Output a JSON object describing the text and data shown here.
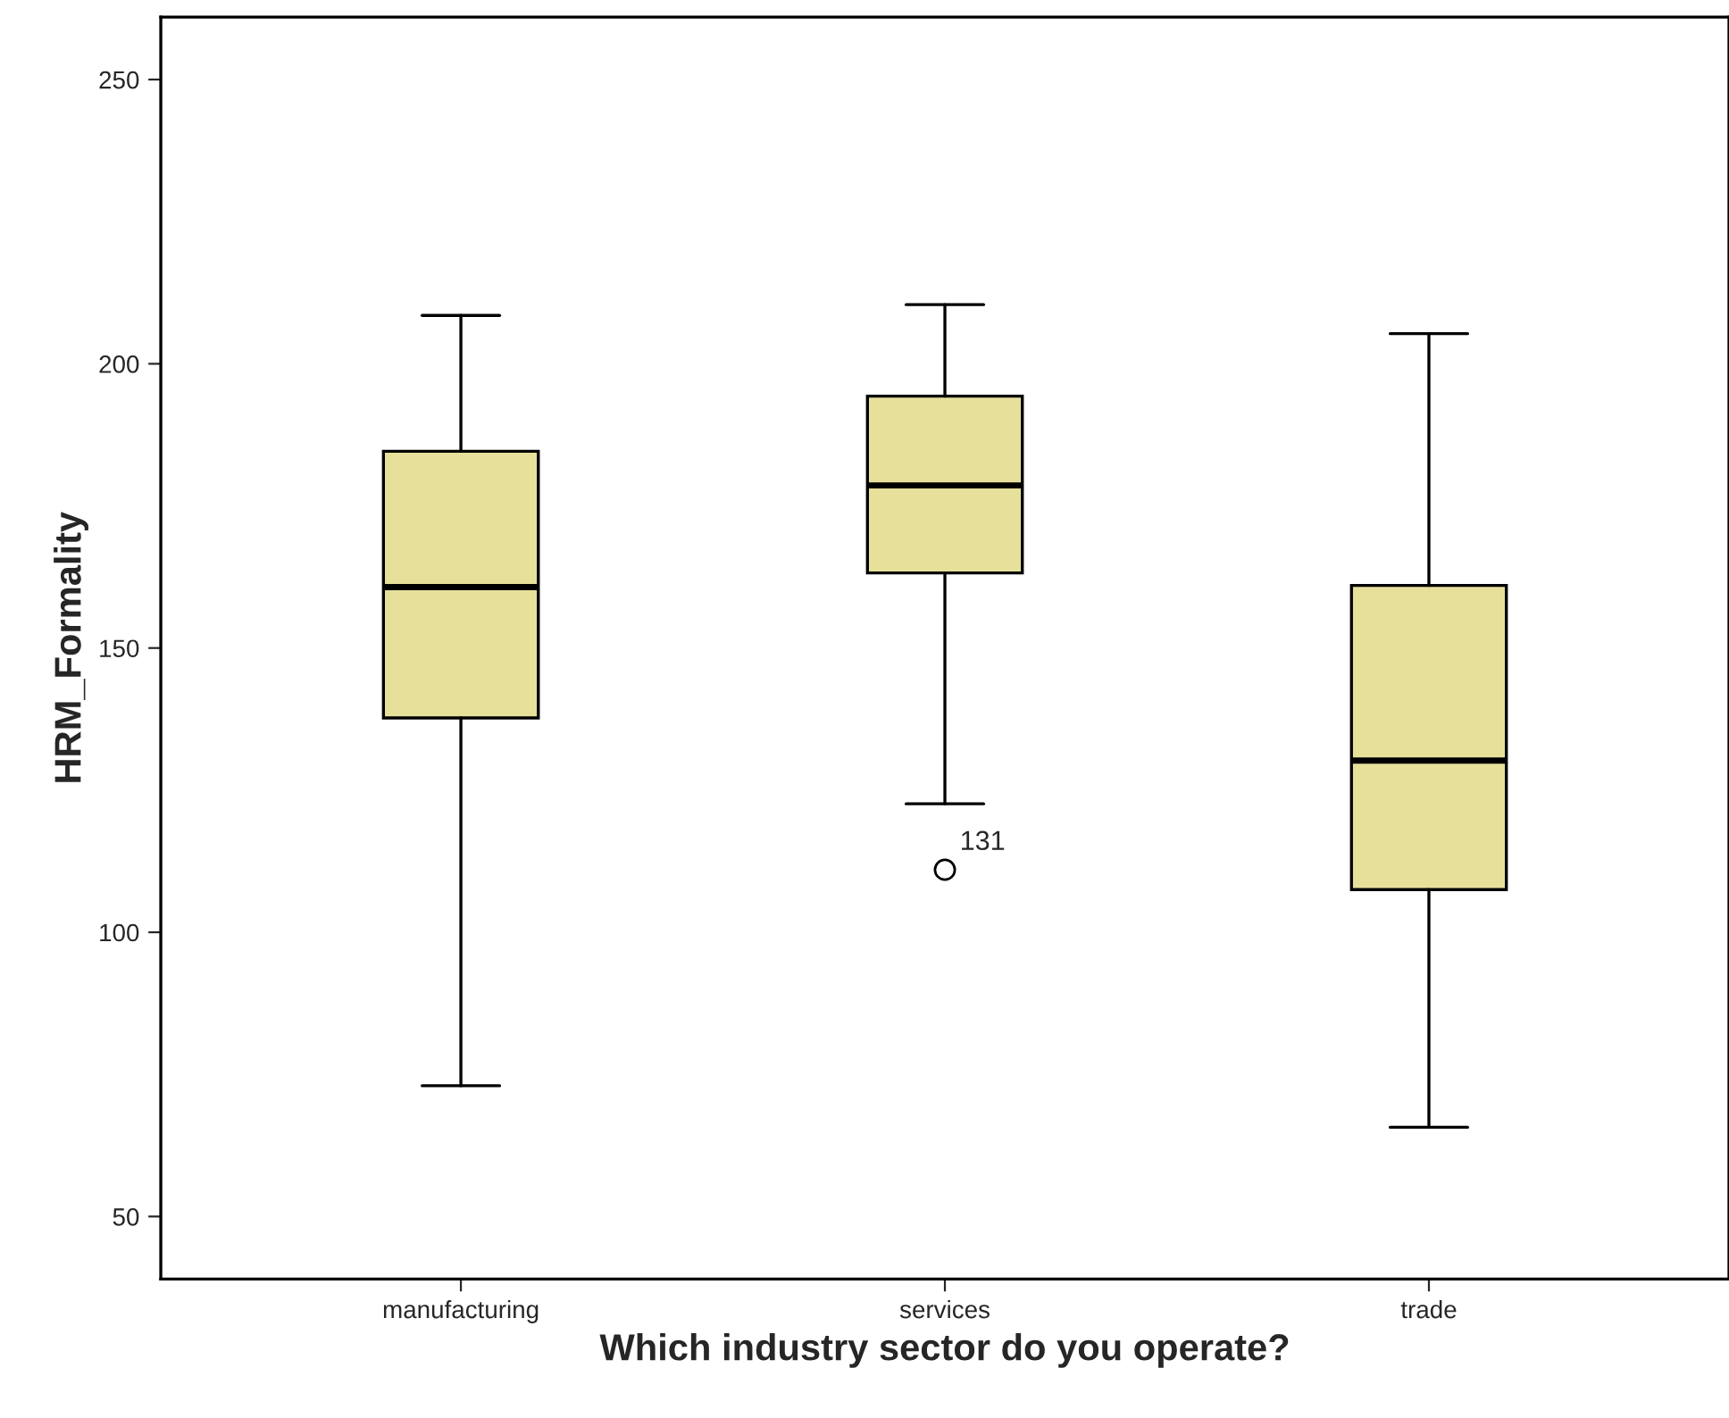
{
  "chart_data": {
    "type": "box",
    "xlabel": "Which industry sector do you operate?",
    "ylabel": "HRM_Formality",
    "categories": [
      "manufacturing",
      "services",
      "trade"
    ],
    "boxes": [
      {
        "low": 73,
        "q1": 137.7,
        "median": 160.7,
        "q3": 184.6,
        "high": 208.5
      },
      {
        "low": 122.6,
        "q1": 163.2,
        "median": 178.6,
        "q3": 194.3,
        "high": 210.4,
        "outliers": [
          111
        ]
      },
      {
        "low": 65.7,
        "q1": 107.5,
        "median": 130.2,
        "q3": 161,
        "high": 205.3
      }
    ],
    "color": "#e6e09b",
    "ylim": [
      39,
      261
    ],
    "yticks": [
      50,
      100,
      150,
      200,
      250
    ],
    "annotations": [
      "131"
    ],
    "grid": false,
    "legend": false
  }
}
